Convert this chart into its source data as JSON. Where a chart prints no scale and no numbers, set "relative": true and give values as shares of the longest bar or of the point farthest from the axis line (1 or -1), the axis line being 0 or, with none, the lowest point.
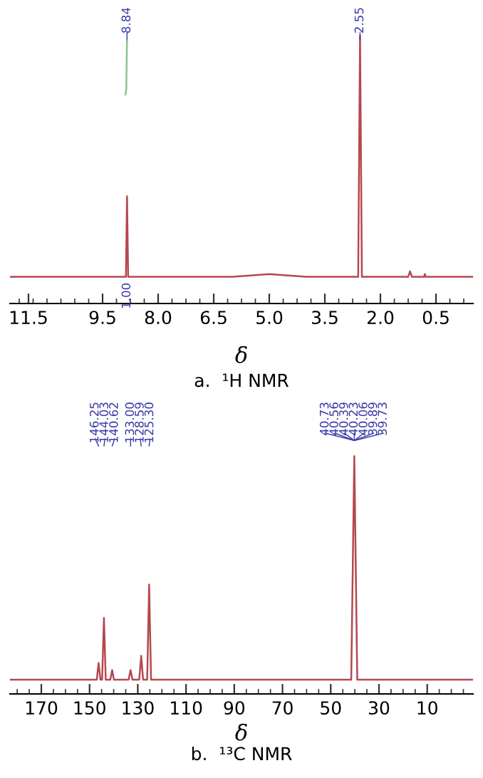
{
  "chart_data": [
    {
      "type": "line",
      "relative": true,
      "title": "a.  ¹H NMR",
      "xlabel": "δ",
      "xlim": [
        12.0,
        -0.5
      ],
      "xticks": [
        11.5,
        9.5,
        {
          "value": 8.0,
          "label": "8.0"
        },
        6.5,
        {
          "value": 5.0,
          "label": "5.0"
        },
        3.5,
        {
          "value": 2.0,
          "label": "2.0"
        },
        0.5
      ],
      "tick_labels": "x",
      "grid": false,
      "legend": false,
      "marker": "none",
      "line_style": "solid",
      "series": [
        {
          "color": "#b5484f",
          "x": [
            12.0,
            9.0,
            8.87,
            8.84,
            8.81,
            6.0,
            5.0,
            4.0,
            2.6,
            2.55,
            2.5,
            1.25,
            1.2,
            1.15,
            0.82,
            0.8,
            0.78,
            -0.5
          ],
          "values": [
            0.1,
            0.1,
            0.1,
            0.4,
            0.1,
            0.1,
            0.11,
            0.1,
            0.1,
            1.0,
            0.1,
            0.1,
            0.12,
            0.1,
            0.1,
            0.11,
            0.1,
            0.1
          ]
        },
        {
          "color": "#8cc48c",
          "x": [
            8.88,
            8.86,
            8.85,
            8.84
          ],
          "values": [
            0.78,
            0.8,
            0.9,
            0.98
          ]
        }
      ],
      "annotations": [
        {
          "text": "8.84",
          "x": 8.84,
          "y": 0.98
        },
        {
          "text": "2.55",
          "x": 2.55,
          "y": 1.0
        },
        {
          "text": "1.00",
          "x": 8.84,
          "y": 0.1
        }
      ]
    },
    {
      "type": "line",
      "relative": true,
      "title": "b.  ¹³C NMR",
      "xlabel": "δ",
      "xlim": [
        183,
        -9
      ],
      "xticks": [
        170,
        150,
        130,
        110,
        90,
        70,
        50,
        30,
        10
      ],
      "tick_labels": "x",
      "grid": false,
      "legend": false,
      "marker": "none",
      "line_style": "solid",
      "series": [
        {
          "color": "#b5484f",
          "x": [
            183,
            147,
            146.25,
            145.5,
            144.8,
            144.03,
            143.3,
            141.4,
            140.62,
            139.9,
            133.8,
            133.0,
            132.2,
            129.4,
            128.59,
            127.8,
            126.1,
            125.3,
            124.5,
            41.5,
            40.23,
            39.0,
            -9
          ],
          "values": [
            0.06,
            0.06,
            0.13,
            0.06,
            0.06,
            0.32,
            0.06,
            0.06,
            0.1,
            0.06,
            0.06,
            0.1,
            0.06,
            0.06,
            0.16,
            0.06,
            0.06,
            0.46,
            0.06,
            0.06,
            1.0,
            0.06,
            0.06
          ]
        }
      ],
      "annotations": [
        {
          "text": "146.25",
          "x": 146.25
        },
        {
          "text": "144.03",
          "x": 144.03
        },
        {
          "text": "140.62",
          "x": 140.62
        },
        {
          "text": "133.00",
          "x": 133.0
        },
        {
          "text": "128.59",
          "x": 128.59
        },
        {
          "text": "125.30",
          "x": 125.3
        },
        {
          "text": "40.73",
          "x": 40.73
        },
        {
          "text": "40.56",
          "x": 40.56
        },
        {
          "text": "40.39",
          "x": 40.39
        },
        {
          "text": "40.23",
          "x": 40.23
        },
        {
          "text": "40.06",
          "x": 40.06
        },
        {
          "text": "39.89",
          "x": 39.89
        },
        {
          "text": "39.73",
          "x": 39.73
        }
      ]
    }
  ]
}
